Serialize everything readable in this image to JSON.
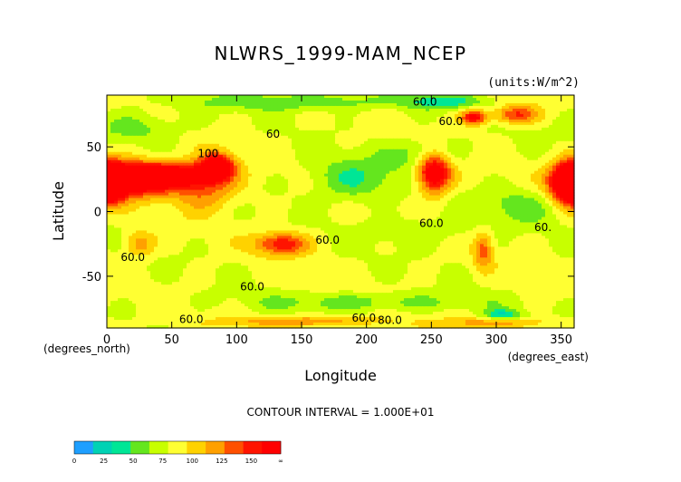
{
  "chart_data": {
    "type": "heatmap",
    "title": "NLWRS_1999-MAM_NCEP",
    "units_label": "(units:W/m^2)",
    "xlabel": "Longitude",
    "ylabel": "Latitude",
    "x_unit_label": "(degrees_east)",
    "y_unit_label": "(degrees_north)",
    "xlim": [
      0,
      360
    ],
    "ylim": [
      -90,
      90
    ],
    "x_ticks": [
      0,
      50,
      100,
      150,
      200,
      250,
      300,
      350
    ],
    "y_ticks": [
      50,
      0,
      -50
    ],
    "contour_interval_text": "CONTOUR INTERVAL = 1.000E+01",
    "contour_labels": [
      {
        "text": "60.0",
        "lon": 245,
        "lat": 82
      },
      {
        "text": "60.0",
        "lon": 265,
        "lat": 67
      },
      {
        "text": "60",
        "lon": 128,
        "lat": 57
      },
      {
        "text": "100",
        "lon": 78,
        "lat": 42
      },
      {
        "text": "60.0",
        "lon": 250,
        "lat": -12
      },
      {
        "text": "60.0",
        "lon": 170,
        "lat": -25
      },
      {
        "text": "60.",
        "lon": 336,
        "lat": -15
      },
      {
        "text": "60.0",
        "lon": 20,
        "lat": -38
      },
      {
        "text": "60.0",
        "lon": 112,
        "lat": -61
      },
      {
        "text": "60.0",
        "lon": 65,
        "lat": -86
      },
      {
        "text": "60.0",
        "lon": 198,
        "lat": -85
      },
      {
        "text": "80.0",
        "lon": 218,
        "lat": -87
      }
    ],
    "colorbar": {
      "ticks": [
        "0",
        "25",
        "50",
        "75",
        "100",
        "125",
        "150",
        "∞"
      ],
      "colors": [
        "#1e9fff",
        "#00d2b4",
        "#00e696",
        "#64e61e",
        "#c8ff00",
        "#ffff32",
        "#ffd200",
        "#ffa000",
        "#ff5000",
        "#ff1400",
        "#ff0000"
      ]
    },
    "background_value": 65,
    "features": [
      {
        "lon": 20,
        "lat": 25,
        "amp": 95,
        "slon": 18,
        "slat": 9
      },
      {
        "lon": 55,
        "lat": 28,
        "amp": 80,
        "slon": 22,
        "slat": 7
      },
      {
        "lon": 85,
        "lat": 35,
        "amp": 90,
        "slon": 9,
        "slat": 7
      },
      {
        "lon": 75,
        "lat": 15,
        "amp": 35,
        "slon": 18,
        "slat": 10
      },
      {
        "lon": 252,
        "lat": 30,
        "amp": 90,
        "slon": 9,
        "slat": 11
      },
      {
        "lon": 355,
        "lat": 22,
        "amp": 90,
        "slon": 10,
        "slat": 11
      },
      {
        "lon": 2,
        "lat": 22,
        "amp": 80,
        "slon": 8,
        "slat": 10
      },
      {
        "lon": 135,
        "lat": -25,
        "amp": 60,
        "slon": 14,
        "slat": 6
      },
      {
        "lon": 290,
        "lat": -30,
        "amp": 40,
        "slon": 5,
        "slat": 10
      },
      {
        "lon": 25,
        "lat": -25,
        "amp": 35,
        "slon": 8,
        "slat": 7
      },
      {
        "lon": 283,
        "lat": 73,
        "amp": 70,
        "slon": 7,
        "slat": 4
      },
      {
        "lon": 315,
        "lat": 75,
        "amp": 50,
        "slon": 12,
        "slat": 5
      },
      {
        "lon": 150,
        "lat": -85,
        "amp": 35,
        "slon": 40,
        "slat": 3
      },
      {
        "lon": 300,
        "lat": -86,
        "amp": 30,
        "slon": 30,
        "slat": 3
      },
      {
        "lon": 190,
        "lat": 25,
        "amp": -28,
        "slon": 25,
        "slat": 12
      },
      {
        "lon": 245,
        "lat": 45,
        "amp": -25,
        "slon": 18,
        "slat": 8
      },
      {
        "lon": 320,
        "lat": 5,
        "amp": -20,
        "slon": 25,
        "slat": 10
      },
      {
        "lon": 150,
        "lat": 85,
        "amp": -25,
        "slon": 60,
        "slat": 5
      },
      {
        "lon": 260,
        "lat": 85,
        "amp": -30,
        "slon": 20,
        "slat": 4
      },
      {
        "lon": 25,
        "lat": 65,
        "amp": -20,
        "slon": 25,
        "slat": 8
      },
      {
        "lon": 200,
        "lat": -70,
        "amp": -22,
        "slon": 60,
        "slat": 5
      },
      {
        "lon": 305,
        "lat": -80,
        "amp": -40,
        "slon": 10,
        "slat": 3
      },
      {
        "lon": 240,
        "lat": -15,
        "amp": -15,
        "slon": 30,
        "slat": 8
      }
    ]
  }
}
